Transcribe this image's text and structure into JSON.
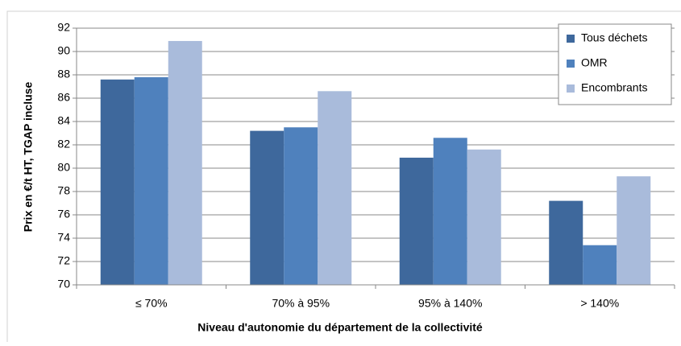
{
  "chart_data": {
    "type": "bar",
    "categories": [
      "≤ 70%",
      "70% à 95%",
      "95% à 140%",
      "> 140%"
    ],
    "series": [
      {
        "name": "Tous déchets",
        "color": "#3e689c",
        "values": [
          87.6,
          83.2,
          80.9,
          77.2
        ]
      },
      {
        "name": "OMR",
        "color": "#4f81bd",
        "values": [
          87.8,
          83.5,
          82.6,
          73.4
        ]
      },
      {
        "name": "Encombrants",
        "color": "#a9bbdb",
        "values": [
          90.9,
          86.6,
          81.6,
          79.3
        ]
      }
    ],
    "ylabel": "Prix en €/t HT, TGAP incluse",
    "xlabel": "Niveau d'autonomie du département de la collectivité",
    "ylim": [
      70,
      92
    ],
    "yticks": [
      70,
      72,
      74,
      76,
      78,
      80,
      82,
      84,
      86,
      88,
      90,
      92
    ],
    "grid": true,
    "legend": "upper right"
  }
}
